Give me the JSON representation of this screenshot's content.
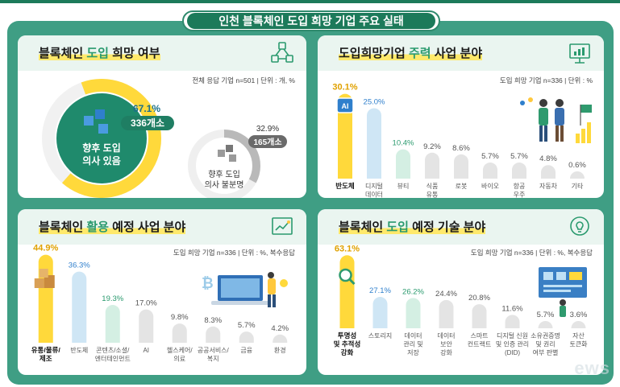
{
  "main_title": "인천 블록체인 도입 희망 기업 주요 실태",
  "panels": {
    "adoption": {
      "title_pre": "블록체인 ",
      "title_accent": "도입",
      "title_post": " 희망 여부",
      "note": "전체 응답 기업 n=501 | 단위 : 개, %",
      "yes": {
        "pct": "67.1%",
        "count": "336개소",
        "label1": "향후 도입",
        "label2": "의사 있음",
        "value": 67.1
      },
      "no": {
        "pct": "32.9%",
        "count": "165개소",
        "label1": "향후 도입",
        "label2": "의사 불분명",
        "value": 32.9
      }
    },
    "main_biz": {
      "title_pre": "도입희망기업 ",
      "title_accent": "주력",
      "title_post": " 사업 분야",
      "note": "도입 희망 기업 n=336 | 단위 : %",
      "ai_badge": "AI"
    },
    "use_biz": {
      "title_pre": "블록체인 ",
      "title_accent": "활용",
      "title_post": " 예정 사업 분야",
      "note": "도입 희망 기업 n=336 | 단위 : %, 복수응답"
    },
    "tech": {
      "title_pre": "블록체인 ",
      "title_accent": "도입",
      "title_post": " 예정 기술 분야",
      "note": "도입 희망 기업 n=336 | 단위 : %, 복수응답"
    }
  },
  "chart_data": [
    {
      "type": "pie",
      "title": "블록체인 도입 희망 여부",
      "categories": [
        "향후 도입 의사 있음",
        "향후 도입 의사 불분명"
      ],
      "values": [
        67.1,
        32.9
      ],
      "counts": [
        336,
        165
      ]
    },
    {
      "type": "bar",
      "title": "도입희망기업 주력 사업 분야",
      "categories": [
        "반도체",
        "디지털 데이터",
        "뷰티",
        "식품 유통",
        "로봇",
        "바이오",
        "항공 우주",
        "자동차",
        "기타"
      ],
      "labels": [
        [
          "반도체"
        ],
        [
          "디지털",
          "데이터"
        ],
        [
          "뷰티"
        ],
        [
          "식품",
          "유통"
        ],
        [
          "로봇"
        ],
        [
          "바이오"
        ],
        [
          "항공",
          "우주"
        ],
        [
          "자동차"
        ],
        [
          "기타"
        ]
      ],
      "values": [
        30.1,
        25.0,
        10.4,
        9.2,
        8.6,
        5.7,
        5.7,
        4.8,
        0.6
      ],
      "value_labels": [
        "30.1%",
        "25.0%",
        "10.4%",
        "9.2%",
        "8.6%",
        "5.7%",
        "5.7%",
        "4.8%",
        "0.6%"
      ],
      "colors": [
        "#ffd93b",
        "#cfe6f5",
        "#d4efe3",
        "#e4e4e4",
        "#e4e4e4",
        "#e4e4e4",
        "#e4e4e4",
        "#e4e4e4",
        "#e4e4e4"
      ],
      "ylim": [
        0,
        32
      ]
    },
    {
      "type": "bar",
      "title": "블록체인 활용 예정 사업 분야",
      "categories": [
        "유통/물류/제조",
        "반도체",
        "콘텐츠/소셜/엔터테인먼트",
        "AI",
        "헬스케어/의료",
        "공공서비스/복지",
        "금융",
        "환경"
      ],
      "labels": [
        [
          "유통/물류/",
          "제조"
        ],
        [
          "반도체"
        ],
        [
          "콘텐츠/소셜/",
          "엔터테인먼트"
        ],
        [
          "AI"
        ],
        [
          "헬스케어/",
          "의료"
        ],
        [
          "공공서비스/",
          "복지"
        ],
        [
          "금융"
        ],
        [
          "환경"
        ]
      ],
      "values": [
        44.9,
        36.3,
        19.3,
        17.0,
        9.8,
        8.3,
        5.7,
        4.2
      ],
      "value_labels": [
        "44.9%",
        "36.3%",
        "19.3%",
        "17.0%",
        "9.8%",
        "8.3%",
        "5.7%",
        "4.2%"
      ],
      "colors": [
        "#ffd93b",
        "#cfe6f5",
        "#d4efe3",
        "#e4e4e4",
        "#e4e4e4",
        "#e4e4e4",
        "#e4e4e4",
        "#e4e4e4"
      ],
      "ylim": [
        0,
        46
      ]
    },
    {
      "type": "bar",
      "title": "블록체인 도입 예정 기술 분야",
      "categories": [
        "투명성 및 추적성 강화",
        "스토리지",
        "데이터 관리 및 저장",
        "데이터 보안 강화",
        "스마트 컨트랙트",
        "디지털 신원 및 인증 관리(DID)",
        "소유권증명 및 권리 여부 판별",
        "자산 토큰화"
      ],
      "labels": [
        [
          "투명성",
          "및 추적성",
          "강화"
        ],
        [
          "스토리지"
        ],
        [
          "데이터",
          "관리 및",
          "저장"
        ],
        [
          "데이터",
          "보안",
          "강화"
        ],
        [
          "스마트",
          "컨트랙트"
        ],
        [
          "디지털 신원",
          "및 인증 관리",
          "(DID)"
        ],
        [
          "소유권증명",
          "및 권리",
          "여부 판별"
        ],
        [
          "자산",
          "토큰화"
        ]
      ],
      "values": [
        63.1,
        27.1,
        26.2,
        24.4,
        20.8,
        11.6,
        5.7,
        3.6
      ],
      "value_labels": [
        "63.1%",
        "27.1%",
        "26.2%",
        "24.4%",
        "20.8%",
        "11.6%",
        "5.7%",
        "3.6%"
      ],
      "colors": [
        "#ffd93b",
        "#cfe6f5",
        "#d4efe3",
        "#e4e4e4",
        "#e4e4e4",
        "#e4e4e4",
        "#e4e4e4",
        "#e4e4e4"
      ],
      "ylim": [
        0,
        64
      ]
    }
  ]
}
